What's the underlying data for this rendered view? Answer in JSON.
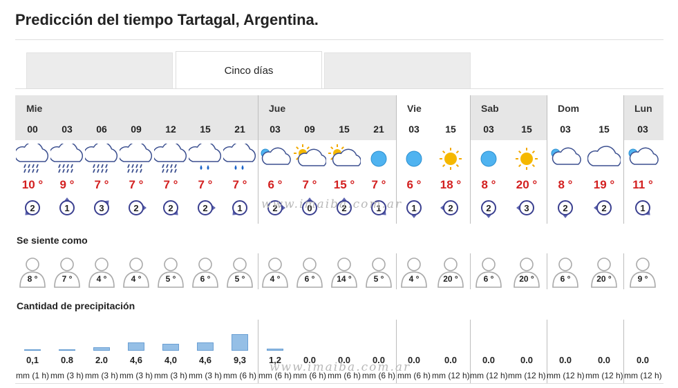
{
  "title": "Predicción del tiempo Tartagal, Argentina.",
  "tabs": [
    {
      "label": ""
    },
    {
      "label": "Cinco días"
    },
    {
      "label": ""
    }
  ],
  "days": [
    {
      "label": "Mie",
      "gray": true,
      "hours": [
        {
          "hour": "00",
          "icon": "cloud-rain-icon",
          "temp": "10 °",
          "wind": "2",
          "dir": 225,
          "feel": "8 °",
          "precip": "0,1",
          "precip_value": 0.1,
          "unit": "mm (1 h)"
        },
        {
          "hour": "03",
          "icon": "cloud-rain-icon",
          "temp": "9 °",
          "wind": "1",
          "dir": 0,
          "feel": "7 °",
          "precip": "0.8",
          "precip_value": 0.8,
          "unit": "mm (3 h)"
        },
        {
          "hour": "06",
          "icon": "cloud-rain-icon",
          "temp": "7 °",
          "wind": "3",
          "dir": 45,
          "feel": "4 °",
          "precip": "2.0",
          "precip_value": 2.0,
          "unit": "mm (3 h)"
        },
        {
          "hour": "09",
          "icon": "cloud-rain-icon",
          "temp": "7 °",
          "wind": "2",
          "dir": 90,
          "feel": "4 °",
          "precip": "4,6",
          "precip_value": 4.6,
          "unit": "mm (3 h)"
        },
        {
          "hour": "12",
          "icon": "cloud-rain-icon",
          "temp": "7 °",
          "wind": "2",
          "dir": 135,
          "feel": "5 °",
          "precip": "4,0",
          "precip_value": 4.0,
          "unit": "mm (3 h)"
        },
        {
          "hour": "15",
          "icon": "cloud-showers-icon",
          "temp": "7 °",
          "wind": "2",
          "dir": 90,
          "feel": "6 °",
          "precip": "4,6",
          "precip_value": 4.6,
          "unit": "mm (3 h)"
        },
        {
          "hour": "21",
          "icon": "cloud-showers-icon",
          "temp": "7 °",
          "wind": "1",
          "dir": 225,
          "feel": "5 °",
          "precip": "9,3",
          "precip_value": 9.3,
          "unit": "mm (6 h)"
        }
      ]
    },
    {
      "label": "Jue",
      "gray": true,
      "hours": [
        {
          "hour": "03",
          "icon": "moon-cloud-icon",
          "temp": "6 °",
          "wind": "2",
          "dir": 90,
          "feel": "4 °",
          "precip": "1,2",
          "precip_value": 1.2,
          "unit": "mm (6 h)"
        },
        {
          "hour": "09",
          "icon": "sun-cloud-icon",
          "temp": "7 °",
          "wind": "0",
          "dir": 0,
          "feel": "6 °",
          "precip": "0.0",
          "precip_value": 0,
          "unit": "mm (6 h)"
        },
        {
          "hour": "15",
          "icon": "sun-cloud-icon",
          "temp": "15 °",
          "wind": "2",
          "dir": 0,
          "feel": "14 °",
          "precip": "0.0",
          "precip_value": 0,
          "unit": "mm (6 h)"
        },
        {
          "hour": "21",
          "icon": "moon-icon",
          "temp": "7 °",
          "wind": "1",
          "dir": 135,
          "feel": "5 °",
          "precip": "0.0",
          "precip_value": 0,
          "unit": "mm (6 h)"
        }
      ]
    },
    {
      "label": "Vie",
      "gray": false,
      "hours": [
        {
          "hour": "03",
          "icon": "moon-icon",
          "temp": "6 °",
          "wind": "1",
          "dir": 180,
          "feel": "4 °",
          "precip": "0.0",
          "precip_value": 0,
          "unit": "mm (6 h)"
        },
        {
          "hour": "15",
          "icon": "sun-icon",
          "temp": "18 °",
          "wind": "2",
          "dir": 270,
          "feel": "20 °",
          "precip": "0.0",
          "precip_value": 0,
          "unit": "mm (12 h)"
        }
      ]
    },
    {
      "label": "Sab",
      "gray": true,
      "hours": [
        {
          "hour": "03",
          "icon": "moon-icon",
          "temp": "8 °",
          "wind": "2",
          "dir": 180,
          "feel": "6 °",
          "precip": "0.0",
          "precip_value": 0,
          "unit": "mm (12 h)"
        },
        {
          "hour": "15",
          "icon": "sun-icon",
          "temp": "20 °",
          "wind": "3",
          "dir": 270,
          "feel": "20 °",
          "precip": "0.0",
          "precip_value": 0,
          "unit": "mm (12 h)"
        }
      ]
    },
    {
      "label": "Dom",
      "gray": false,
      "hours": [
        {
          "hour": "03",
          "icon": "moon-cloud-icon",
          "temp": "8 °",
          "wind": "2",
          "dir": 180,
          "feel": "6 °",
          "precip": "0.0",
          "precip_value": 0,
          "unit": "mm (12 h)"
        },
        {
          "hour": "15",
          "icon": "cloud-icon",
          "temp": "19 °",
          "wind": "2",
          "dir": 270,
          "feel": "20 °",
          "precip": "0.0",
          "precip_value": 0,
          "unit": "mm (12 h)"
        }
      ]
    },
    {
      "label": "Lun",
      "gray": true,
      "hours": [
        {
          "hour": "03",
          "icon": "moon-cloud-icon",
          "temp": "11 °",
          "wind": "1",
          "dir": 135,
          "feel": "9 °",
          "precip": "0.0",
          "precip_value": 0,
          "unit": "mm (12 h)"
        }
      ]
    }
  ],
  "sections": {
    "feels_like": "Se siente como",
    "precipitation": "Cantidad de precipitación"
  },
  "watermark": "www.imaiba.com.ar",
  "colors": {
    "temp": "#d32020",
    "bar": "#95bfe6",
    "wind": "#3a3f8f",
    "band": "#e6e6e6"
  }
}
